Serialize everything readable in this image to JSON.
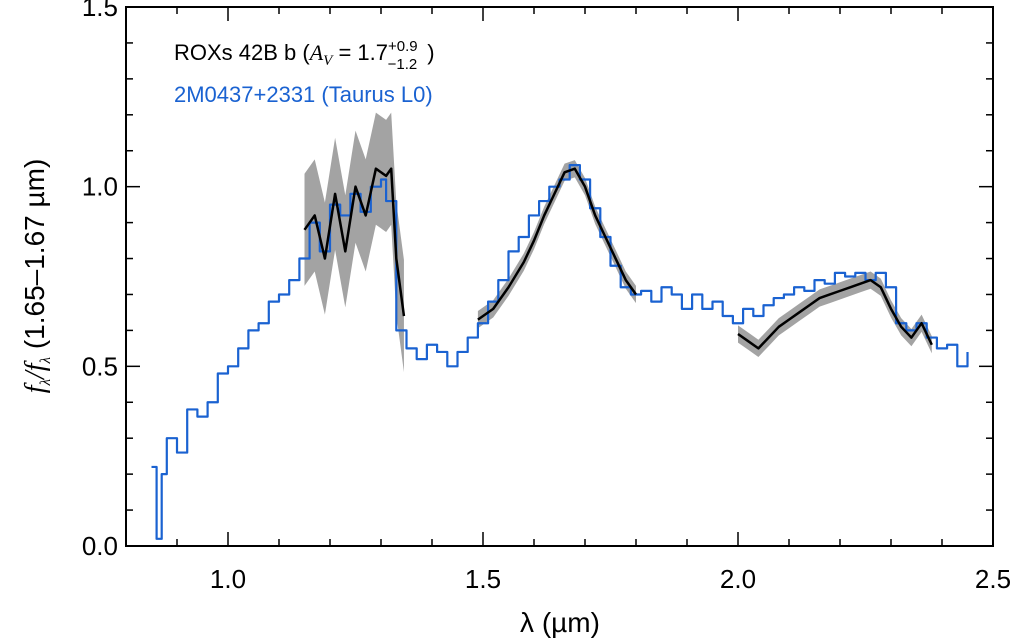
{
  "chart_data": {
    "type": "line",
    "xlabel": "λ (µm)",
    "ylabel": "f_λ/f_λ (1.65–1.67 µm)",
    "xlim": [
      0.8,
      2.5
    ],
    "ylim": [
      0.0,
      1.5
    ],
    "x_ticks": [
      "1.0",
      "1.5",
      "2.0",
      "2.5"
    ],
    "y_ticks": [
      "0.0",
      "0.5",
      "1.0",
      "1.5"
    ],
    "legend_position": "top-left",
    "colors": {
      "black_series": "#000000",
      "blue_series": "#1a62d1",
      "uncertainty_band": "#999999"
    },
    "legend": {
      "series1_prefix": "ROXs 42B b (",
      "series1_av": "A",
      "series1_av_sub": "V",
      "series1_eq": " = 1.7",
      "series1_sup": "+0.9",
      "series1_sub": "−1.2",
      "series1_close": ")",
      "series2": "2M0437+2331 (Taurus L0)"
    },
    "series": [
      {
        "name": "ROXs 42B b (A_V = 1.7 +0.9 −1.2)",
        "color": "#000000",
        "uncertainty": 0.12,
        "segments": [
          {
            "x": [
              1.15,
              1.17,
              1.19,
              1.21,
              1.23,
              1.25,
              1.27,
              1.29,
              1.31,
              1.32,
              1.33,
              1.345
            ],
            "y": [
              0.88,
              0.92,
              0.8,
              0.98,
              0.82,
              1.0,
              0.92,
              1.05,
              1.03,
              1.05,
              0.8,
              0.64
            ]
          },
          {
            "x": [
              1.49,
              1.52,
              1.55,
              1.58,
              1.6,
              1.62,
              1.64,
              1.66,
              1.68,
              1.7,
              1.72,
              1.74,
              1.76,
              1.78,
              1.8
            ],
            "y": [
              0.63,
              0.66,
              0.72,
              0.79,
              0.85,
              0.92,
              0.98,
              1.04,
              1.05,
              1.0,
              0.92,
              0.86,
              0.8,
              0.74,
              0.7
            ]
          },
          {
            "x": [
              2.0,
              2.02,
              2.04,
              2.06,
              2.08,
              2.1,
              2.12,
              2.14,
              2.16,
              2.18,
              2.2,
              2.22,
              2.24,
              2.26,
              2.28,
              2.3,
              2.32,
              2.34,
              2.36,
              2.38
            ],
            "y": [
              0.59,
              0.57,
              0.55,
              0.58,
              0.61,
              0.63,
              0.65,
              0.67,
              0.69,
              0.7,
              0.71,
              0.72,
              0.73,
              0.74,
              0.72,
              0.66,
              0.61,
              0.58,
              0.62,
              0.56
            ]
          }
        ]
      },
      {
        "name": "2M0437+2331 (Taurus L0)",
        "color": "#1a62d1",
        "segments": [
          {
            "x": [
              0.85,
              0.86,
              0.87,
              0.88,
              0.9,
              0.92,
              0.94,
              0.96,
              0.98,
              1.0,
              1.02,
              1.04,
              1.06,
              1.08,
              1.1,
              1.12,
              1.14,
              1.16,
              1.18,
              1.2,
              1.22,
              1.24,
              1.26,
              1.28,
              1.3,
              1.31,
              1.33,
              1.35,
              1.37,
              1.39,
              1.41,
              1.43,
              1.45,
              1.47,
              1.49,
              1.51,
              1.53,
              1.55,
              1.57,
              1.59,
              1.61,
              1.63,
              1.65,
              1.67,
              1.69,
              1.71,
              1.73,
              1.75,
              1.77,
              1.79,
              1.81,
              1.83,
              1.85,
              1.87,
              1.89,
              1.91,
              1.93,
              1.95,
              1.97,
              1.99,
              2.01,
              2.03,
              2.05,
              2.07,
              2.09,
              2.11,
              2.13,
              2.15,
              2.17,
              2.19,
              2.21,
              2.23,
              2.25,
              2.27,
              2.29,
              2.31,
              2.33,
              2.35,
              2.37,
              2.39,
              2.41,
              2.43,
              2.45
            ],
            "y": [
              0.22,
              0.02,
              0.2,
              0.3,
              0.26,
              0.38,
              0.36,
              0.4,
              0.48,
              0.5,
              0.55,
              0.6,
              0.62,
              0.68,
              0.7,
              0.74,
              0.8,
              0.9,
              0.82,
              0.95,
              0.92,
              0.98,
              0.93,
              1.0,
              1.02,
              0.96,
              0.6,
              0.55,
              0.52,
              0.56,
              0.54,
              0.5,
              0.54,
              0.58,
              0.62,
              0.68,
              0.74,
              0.82,
              0.86,
              0.92,
              0.96,
              1.0,
              1.02,
              1.06,
              1.02,
              0.94,
              0.86,
              0.78,
              0.72,
              0.7,
              0.71,
              0.68,
              0.72,
              0.7,
              0.66,
              0.7,
              0.66,
              0.68,
              0.64,
              0.62,
              0.66,
              0.64,
              0.67,
              0.69,
              0.7,
              0.72,
              0.71,
              0.74,
              0.73,
              0.76,
              0.75,
              0.76,
              0.74,
              0.76,
              0.72,
              0.62,
              0.6,
              0.62,
              0.58,
              0.55,
              0.56,
              0.5,
              0.54
            ]
          }
        ]
      }
    ]
  }
}
